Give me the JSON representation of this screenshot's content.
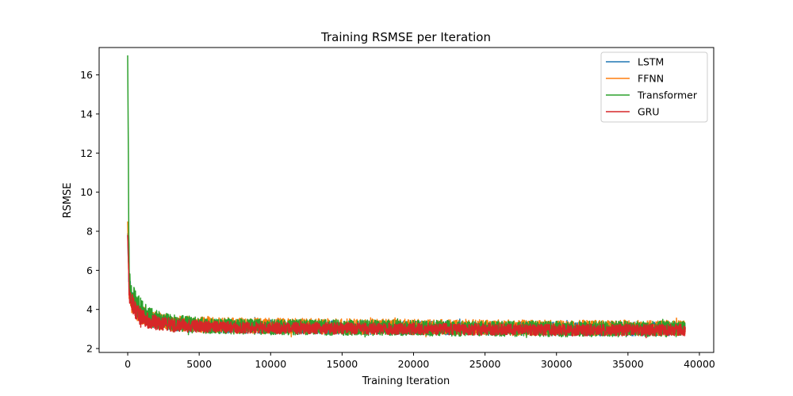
{
  "chart_data": {
    "type": "line",
    "title": "Training RSMSE per Iteration",
    "xlabel": "Training Iteration",
    "ylabel": "RSMSE",
    "xlim": [
      -2000,
      41000
    ],
    "ylim": [
      1.8,
      17.4
    ],
    "xticks": [
      0,
      5000,
      10000,
      15000,
      20000,
      25000,
      30000,
      35000,
      40000
    ],
    "yticks": [
      2,
      4,
      6,
      8,
      10,
      12,
      14,
      16
    ],
    "grid": false,
    "legend_position": "top-right",
    "series": [
      {
        "name": "LSTM",
        "color": "#1f77b4",
        "x_end": 39000,
        "initial_peak": 7.9,
        "profile": {
          "x": [
            0,
            100,
            300,
            800,
            1500,
            3000,
            6000,
            10000,
            20000,
            30000,
            39000
          ],
          "center": [
            7.9,
            5.2,
            4.4,
            3.9,
            3.5,
            3.25,
            3.15,
            3.1,
            3.05,
            3.0,
            3.0
          ],
          "spread": [
            0.1,
            0.6,
            0.55,
            0.5,
            0.4,
            0.35,
            0.35,
            0.35,
            0.35,
            0.35,
            0.35
          ]
        }
      },
      {
        "name": "FFNN",
        "color": "#ff7f0e",
        "x_end": 39000,
        "initial_peak": 8.5,
        "profile": {
          "x": [
            0,
            100,
            300,
            800,
            1500,
            3000,
            6000,
            10000,
            20000,
            30000,
            39000
          ],
          "center": [
            8.5,
            5.0,
            4.3,
            3.8,
            3.5,
            3.3,
            3.2,
            3.15,
            3.1,
            3.05,
            3.05
          ],
          "spread": [
            0.1,
            0.6,
            0.55,
            0.5,
            0.45,
            0.4,
            0.4,
            0.4,
            0.4,
            0.4,
            0.4
          ]
        }
      },
      {
        "name": "Transformer",
        "color": "#2ca02c",
        "x_end": 39000,
        "initial_peak": 17.0,
        "profile": {
          "x": [
            0,
            100,
            300,
            800,
            1500,
            3000,
            6000,
            10000,
            20000,
            30000,
            39000
          ],
          "center": [
            17.0,
            5.5,
            4.6,
            4.1,
            3.6,
            3.3,
            3.15,
            3.1,
            3.05,
            3.0,
            3.0
          ],
          "spread": [
            0.1,
            0.8,
            0.7,
            0.6,
            0.5,
            0.45,
            0.4,
            0.4,
            0.4,
            0.4,
            0.4
          ]
        }
      },
      {
        "name": "GRU",
        "color": "#d62728",
        "x_end": 39000,
        "initial_peak": 7.8,
        "profile": {
          "x": [
            0,
            100,
            300,
            800,
            1500,
            3000,
            6000,
            10000,
            20000,
            30000,
            39000
          ],
          "center": [
            7.8,
            4.9,
            4.3,
            3.7,
            3.4,
            3.2,
            3.1,
            3.05,
            3.0,
            2.95,
            2.95
          ],
          "spread": [
            0.1,
            0.5,
            0.5,
            0.45,
            0.4,
            0.35,
            0.3,
            0.3,
            0.3,
            0.3,
            0.3
          ]
        }
      }
    ]
  }
}
